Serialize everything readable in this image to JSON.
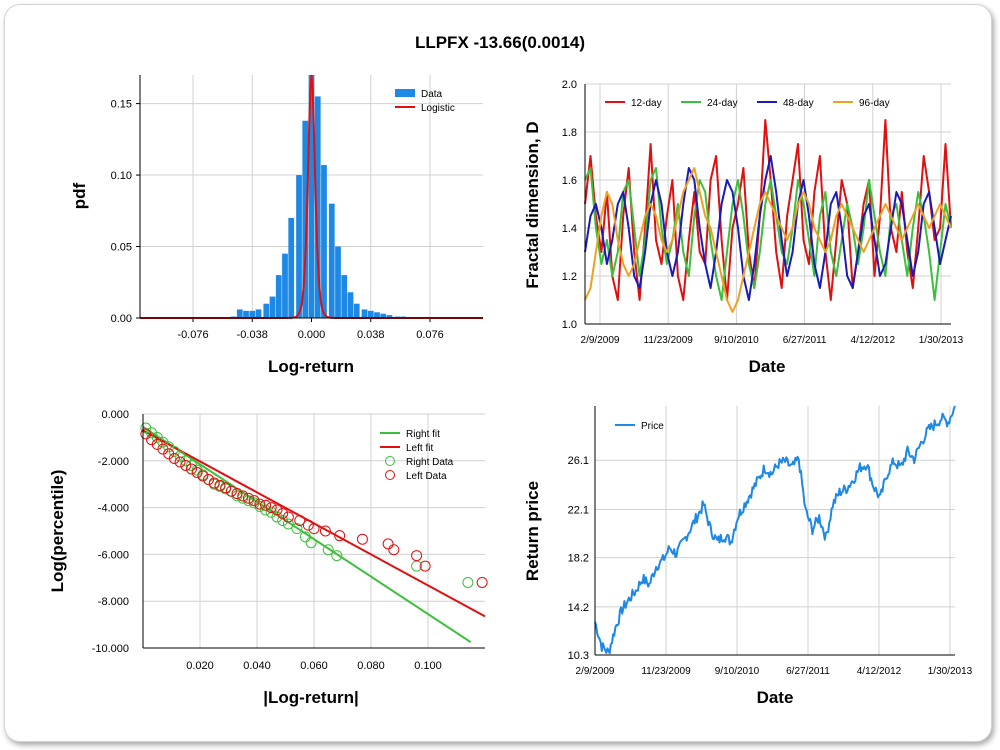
{
  "title": "LLPFX -13.66(0.0014)",
  "chart_data": [
    {
      "id": "pdf",
      "type": "bar",
      "xlabel": "Log-return",
      "ylabel": "pdf",
      "xlim": [
        -0.11,
        0.11
      ],
      "ylim": [
        0,
        0.17
      ],
      "xticks": [
        -0.076,
        -0.038,
        0.0,
        0.038,
        0.076
      ],
      "xtick_labels": [
        "-0.076",
        "-0.038",
        "0.000",
        "0.038",
        "0.076"
      ],
      "yticks": [
        0,
        0.05,
        0.1,
        0.15
      ],
      "ytick_labels": [
        "0.00",
        "0.05",
        "0.10",
        "0.15"
      ],
      "legend": [
        "Data",
        "Logistic"
      ],
      "legend_position": "top-right",
      "colors": {
        "bars": "#1e88e5",
        "fit": "#e01010"
      },
      "bin_width": 0.0042,
      "bins_x": [
        -0.092,
        -0.088,
        -0.084,
        -0.08,
        -0.075,
        -0.071,
        -0.067,
        -0.063,
        -0.059,
        -0.055,
        -0.05,
        -0.046,
        -0.042,
        -0.038,
        -0.034,
        -0.029,
        -0.025,
        -0.021,
        -0.017,
        -0.013,
        -0.008,
        -0.004,
        0.0,
        0.004,
        0.008,
        0.013,
        0.017,
        0.021,
        0.025,
        0.029,
        0.034,
        0.038,
        0.042,
        0.046,
        0.05,
        0.055,
        0.059,
        0.063,
        0.067,
        0.071,
        0.076,
        0.08,
        0.084,
        0.088,
        0.092
      ],
      "bins_y": [
        0.0005,
        0.0003,
        0.0003,
        0.0005,
        0.0003,
        0.0005,
        0.0005,
        0.0005,
        0.0005,
        0.0005,
        0.001,
        0.006,
        0.005,
        0.005,
        0.006,
        0.01,
        0.015,
        0.03,
        0.045,
        0.07,
        0.1,
        0.138,
        0.17,
        0.155,
        0.107,
        0.08,
        0.05,
        0.03,
        0.018,
        0.01,
        0.006,
        0.005,
        0.004,
        0.003,
        0.002,
        0.001,
        0.001,
        0.0005,
        0.0005,
        0.0005,
        0.0005,
        0.0005,
        0.0003,
        0.0005,
        0.0003
      ],
      "fit": {
        "name": "Logistic",
        "mu": 0.0,
        "s": 0.0015,
        "peak": 0.17
      }
    },
    {
      "id": "fractal",
      "type": "line",
      "xlabel": "Date",
      "ylabel": "Fractal dimension, D",
      "ylim": [
        1.0,
        2.0
      ],
      "yticks": [
        1.0,
        1.2,
        1.4,
        1.6,
        1.8,
        2.0
      ],
      "ytick_labels": [
        "1.0",
        "1.2",
        "1.4",
        "1.6",
        "1.8",
        "2.0"
      ],
      "xtick_labels": [
        "2/9/2009",
        "11/23/2009",
        "9/10/2010",
        "6/27/2011",
        "4/12/2012",
        "1/30/2013"
      ],
      "legend_position": "top",
      "series": [
        {
          "name": "12-day",
          "color": "#e01010",
          "values": [
            1.5,
            1.7,
            1.45,
            1.3,
            1.55,
            1.2,
            1.1,
            1.45,
            1.65,
            1.3,
            1.1,
            1.4,
            1.75,
            1.35,
            1.25,
            1.45,
            1.6,
            1.2,
            1.1,
            1.35,
            1.55,
            1.3,
            1.25,
            1.6,
            1.7,
            1.35,
            1.1,
            1.4,
            1.5,
            1.65,
            1.3,
            1.15,
            1.45,
            1.85,
            1.6,
            1.3,
            1.15,
            1.45,
            1.6,
            1.75,
            1.35,
            1.25,
            1.55,
            1.7,
            1.3,
            1.1,
            1.35,
            1.6,
            1.5,
            1.15,
            1.3,
            1.5,
            1.6,
            1.2,
            1.45,
            1.85,
            1.4,
            1.3,
            1.55,
            1.3,
            1.15,
            1.4,
            1.7,
            1.55,
            1.35,
            1.4,
            1.75,
            1.4
          ]
        },
        {
          "name": "24-day",
          "color": "#3cc03c",
          "values": [
            1.6,
            1.65,
            1.4,
            1.25,
            1.35,
            1.2,
            1.3,
            1.55,
            1.6,
            1.4,
            1.2,
            1.35,
            1.6,
            1.65,
            1.4,
            1.25,
            1.35,
            1.5,
            1.3,
            1.2,
            1.45,
            1.6,
            1.55,
            1.35,
            1.2,
            1.1,
            1.3,
            1.5,
            1.6,
            1.45,
            1.25,
            1.15,
            1.3,
            1.5,
            1.6,
            1.45,
            1.3,
            1.25,
            1.4,
            1.6,
            1.5,
            1.35,
            1.2,
            1.45,
            1.55,
            1.3,
            1.2,
            1.35,
            1.5,
            1.4,
            1.25,
            1.4,
            1.6,
            1.45,
            1.3,
            1.2,
            1.45,
            1.5,
            1.35,
            1.2,
            1.4,
            1.55,
            1.45,
            1.3,
            1.1,
            1.3,
            1.5,
            1.4
          ]
        },
        {
          "name": "48-day",
          "color": "#1a1ab8",
          "values": [
            1.3,
            1.45,
            1.5,
            1.4,
            1.25,
            1.35,
            1.5,
            1.55,
            1.4,
            1.2,
            1.15,
            1.3,
            1.5,
            1.6,
            1.5,
            1.3,
            1.2,
            1.3,
            1.5,
            1.65,
            1.6,
            1.4,
            1.25,
            1.15,
            1.3,
            1.5,
            1.6,
            1.55,
            1.4,
            1.2,
            1.1,
            1.25,
            1.45,
            1.6,
            1.7,
            1.55,
            1.35,
            1.2,
            1.3,
            1.5,
            1.6,
            1.45,
            1.25,
            1.15,
            1.3,
            1.5,
            1.55,
            1.4,
            1.2,
            1.15,
            1.3,
            1.45,
            1.5,
            1.35,
            1.2,
            1.25,
            1.4,
            1.55,
            1.5,
            1.35,
            1.2,
            1.3,
            1.5,
            1.55,
            1.4,
            1.25,
            1.35,
            1.45
          ]
        },
        {
          "name": "96-day",
          "color": "#f0a020",
          "values": [
            1.1,
            1.15,
            1.3,
            1.45,
            1.55,
            1.5,
            1.35,
            1.25,
            1.2,
            1.25,
            1.35,
            1.45,
            1.5,
            1.45,
            1.35,
            1.3,
            1.35,
            1.45,
            1.55,
            1.6,
            1.65,
            1.55,
            1.45,
            1.4,
            1.3,
            1.2,
            1.1,
            1.05,
            1.1,
            1.2,
            1.3,
            1.4,
            1.5,
            1.55,
            1.5,
            1.45,
            1.4,
            1.35,
            1.4,
            1.5,
            1.55,
            1.5,
            1.4,
            1.35,
            1.3,
            1.35,
            1.45,
            1.5,
            1.45,
            1.4,
            1.35,
            1.3,
            1.35,
            1.4,
            1.45,
            1.5,
            1.45,
            1.4,
            1.35,
            1.4,
            1.45,
            1.5,
            1.45,
            1.4,
            1.45,
            1.5,
            1.45,
            1.4
          ]
        }
      ]
    },
    {
      "id": "tail",
      "type": "scatter",
      "xlabel": "|Log-return|",
      "ylabel": "Log(percentile)",
      "xlim": [
        0,
        0.12
      ],
      "ylim": [
        -10,
        0
      ],
      "xticks": [
        0.02,
        0.04,
        0.06,
        0.08,
        0.1
      ],
      "xtick_labels": [
        "0.020",
        "0.040",
        "0.060",
        "0.080",
        "0.100"
      ],
      "yticks": [
        0,
        -2,
        -4,
        -6,
        -8,
        -10
      ],
      "ytick_labels": [
        "0.000",
        "-2.000",
        "-4.000",
        "-6.000",
        "-8.000",
        "-10.000"
      ],
      "legend": [
        "Right fit",
        "Left fit",
        "Right Data",
        "Left Data"
      ],
      "legend_position": "top-right",
      "right_fit": {
        "color": "#3cc03c",
        "x": [
          0,
          0.115
        ],
        "y": [
          -0.55,
          -9.75
        ]
      },
      "left_fit": {
        "color": "#e01010",
        "x": [
          0,
          0.12
        ],
        "y": [
          -0.7,
          -8.65
        ]
      },
      "right_data": {
        "color": "#3cc03c",
        "x": [
          0.001,
          0.003,
          0.005,
          0.007,
          0.009,
          0.011,
          0.013,
          0.015,
          0.017,
          0.019,
          0.021,
          0.023,
          0.025,
          0.027,
          0.029,
          0.031,
          0.033,
          0.035,
          0.037,
          0.039,
          0.041,
          0.043,
          0.045,
          0.047,
          0.049,
          0.051,
          0.054,
          0.057,
          0.059,
          0.065,
          0.068,
          0.096,
          0.114
        ],
        "y": [
          -0.6,
          -0.8,
          -1.0,
          -1.2,
          -1.4,
          -1.6,
          -1.8,
          -2.0,
          -2.2,
          -2.4,
          -2.6,
          -2.8,
          -3.0,
          -3.1,
          -3.2,
          -3.3,
          -3.5,
          -3.6,
          -3.7,
          -3.8,
          -3.95,
          -4.1,
          -4.2,
          -4.4,
          -4.55,
          -4.7,
          -4.9,
          -5.25,
          -5.5,
          -5.8,
          -6.05,
          -6.5,
          -7.2
        ]
      },
      "left_data": {
        "color": "#e01010",
        "x": [
          0.001,
          0.003,
          0.005,
          0.007,
          0.009,
          0.011,
          0.013,
          0.015,
          0.017,
          0.019,
          0.021,
          0.023,
          0.025,
          0.027,
          0.029,
          0.031,
          0.033,
          0.035,
          0.037,
          0.039,
          0.041,
          0.043,
          0.045,
          0.047,
          0.049,
          0.051,
          0.055,
          0.058,
          0.06,
          0.064,
          0.069,
          0.077,
          0.086,
          0.088,
          0.096,
          0.099,
          0.119
        ],
        "y": [
          -0.85,
          -1.1,
          -1.3,
          -1.5,
          -1.7,
          -1.9,
          -2.05,
          -2.2,
          -2.35,
          -2.5,
          -2.65,
          -2.8,
          -2.95,
          -3.05,
          -3.15,
          -3.3,
          -3.4,
          -3.5,
          -3.6,
          -3.7,
          -3.85,
          -3.9,
          -4.0,
          -4.1,
          -4.25,
          -4.4,
          -4.55,
          -4.75,
          -4.9,
          -5.0,
          -5.2,
          -5.35,
          -5.55,
          -5.8,
          -6.05,
          -6.5,
          -7.2
        ]
      }
    },
    {
      "id": "price",
      "type": "line",
      "xlabel": "Date",
      "ylabel": "Return price",
      "ylim": [
        10.3,
        30.5
      ],
      "yticks": [
        10.3,
        14.2,
        18.2,
        22.1,
        26.1
      ],
      "ytick_labels": [
        "10.3",
        "14.2",
        "18.2",
        "22.1",
        "26.1"
      ],
      "xtick_labels": [
        "2/9/2009",
        "11/23/2009",
        "9/10/2010",
        "6/27/2011",
        "4/12/2012",
        "1/30/2013"
      ],
      "legend_position": "top-left",
      "series": [
        {
          "name": "Price",
          "color": "#1e88e5",
          "values": [
            13.0,
            11.0,
            10.5,
            12.5,
            14.0,
            14.8,
            15.5,
            16.5,
            16.0,
            17.5,
            18.0,
            19.0,
            18.5,
            19.5,
            20.5,
            21.5,
            22.5,
            20.5,
            19.5,
            20.0,
            19.5,
            21.5,
            22.5,
            23.5,
            24.5,
            25.5,
            25.0,
            25.8,
            26.0,
            25.5,
            26.2,
            22.0,
            20.5,
            21.5,
            19.8,
            22.5,
            23.5,
            23.8,
            24.5,
            25.5,
            25.8,
            24.0,
            23.0,
            25.0,
            26.0,
            25.5,
            26.8,
            26.2,
            27.5,
            28.5,
            29.0,
            29.5,
            29.2,
            30.5
          ]
        }
      ]
    }
  ]
}
